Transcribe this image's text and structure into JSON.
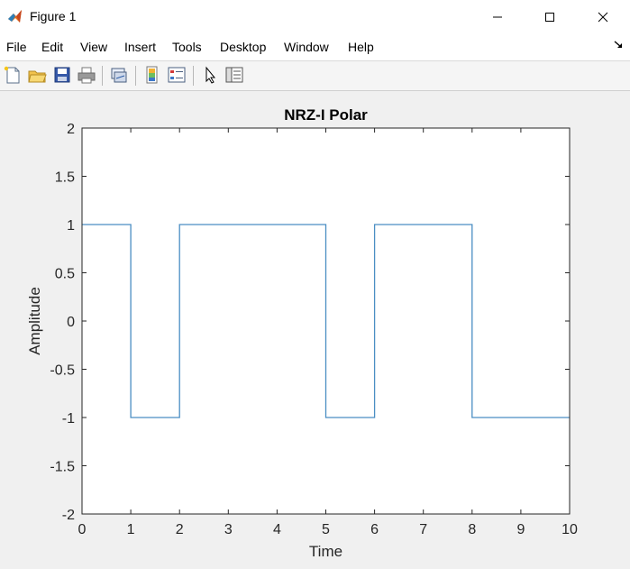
{
  "window": {
    "title": "Figure 1",
    "icons": {
      "app": "matlab-logo-icon",
      "minimize": "minimize-icon",
      "maximize": "maximize-icon",
      "close": "close-icon"
    }
  },
  "menubar": {
    "items": [
      "File",
      "Edit",
      "View",
      "Insert",
      "Tools",
      "Desktop",
      "Window",
      "Help"
    ],
    "dock_icon": "dock-arrow-icon"
  },
  "toolbar": {
    "buttons": [
      "new-figure-icon",
      "open-file-icon",
      "save-icon",
      "print-icon",
      "link-plot-icon",
      "insert-colorbar-icon",
      "insert-legend-icon",
      "pointer-icon",
      "property-inspector-icon"
    ]
  },
  "chart_data": {
    "type": "line",
    "title": "NRZ-I Polar",
    "xlabel": "Time",
    "ylabel": "Amplitude",
    "xlim": [
      0,
      10
    ],
    "ylim": [
      -2,
      2
    ],
    "xticks": [
      "0",
      "1",
      "2",
      "3",
      "4",
      "5",
      "6",
      "7",
      "8",
      "9",
      "10"
    ],
    "yticks": [
      "2",
      "1.5",
      "1",
      "0.5",
      "0",
      "-0.5",
      "-1",
      "-1.5",
      "-2"
    ],
    "grid": false,
    "series": [
      {
        "color": "#4a8ec3",
        "points": [
          [
            0,
            1
          ],
          [
            1,
            1
          ],
          [
            1,
            -1
          ],
          [
            2,
            -1
          ],
          [
            2,
            1
          ],
          [
            5,
            1
          ],
          [
            5,
            -1
          ],
          [
            6,
            -1
          ],
          [
            6,
            1
          ],
          [
            8,
            1
          ],
          [
            8,
            -1
          ],
          [
            10,
            -1
          ]
        ]
      }
    ]
  }
}
